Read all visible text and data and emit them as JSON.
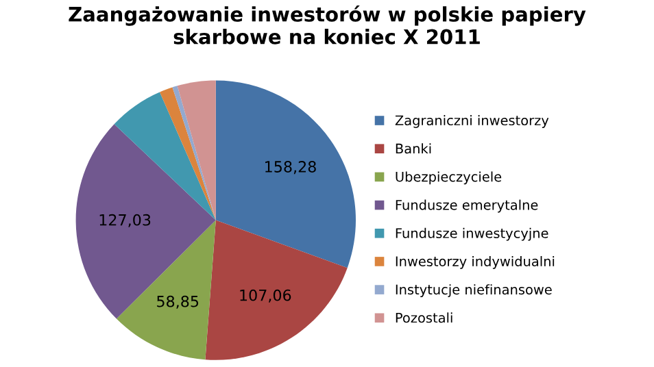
{
  "chart_data": {
    "type": "pie",
    "title": "Zaangażowanie inwestorów w polskie papiery\nskarbowe na koniec X 2011",
    "categories": [
      "Zagraniczni inwestorzy",
      "Banki",
      "Ubezpieczyciele",
      "Fundusze emerytalne",
      "Fundusze inwestycyjne",
      "Inwestorzy indywidualni",
      "Instytucje niefinansowe",
      "Pozostali"
    ],
    "values": [
      158.28,
      107.06,
      58.85,
      127.03,
      33,
      8,
      3,
      23
    ],
    "value_labels": [
      "158,28",
      "107,06",
      "58,85",
      "127,03",
      null,
      null,
      null,
      null
    ],
    "colors": [
      "#4573a7",
      "#aa4643",
      "#89a54e",
      "#71588f",
      "#4198af",
      "#db843d",
      "#93a9cf",
      "#d19392"
    ],
    "legend": "right"
  }
}
